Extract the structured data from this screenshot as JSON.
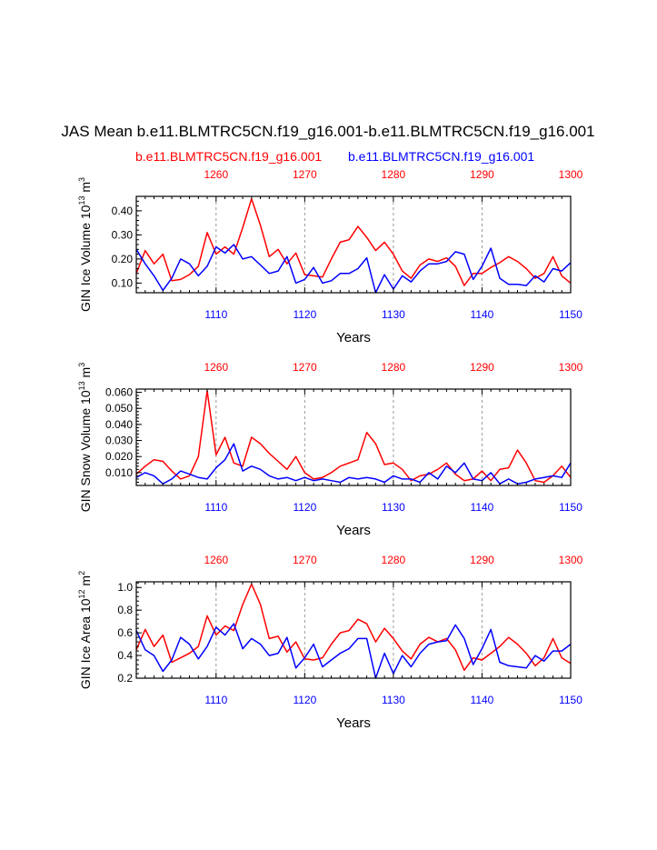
{
  "title": "JAS Mean b.e11.BLMTRC5CN.f19_g16.001-b.e11.BLMTRC5CN.f19_g16.001",
  "legend": {
    "red_label": "b.e11.BLMTRC5CN.f19_g16.001",
    "blue_label": "b.e11.BLMTRC5CN.f19_g16.001"
  },
  "colors": {
    "red": "#ff0000",
    "blue": "#0000ff",
    "axis": "#000000",
    "grid": "#999999"
  },
  "chart_data": [
    {
      "type": "line",
      "ylabel": "GIN Ice Volume 10",
      "ylabel_exp": "13",
      "ylabel_unit": "m",
      "ylabel_unit_exp": "3",
      "xlabel": "Years",
      "ylim": [
        0.06,
        0.46
      ],
      "yticks": [
        0.1,
        0.2,
        0.3,
        0.4
      ],
      "ytick_labels": [
        "0.10",
        "0.20",
        "0.30",
        "0.40"
      ],
      "bottom_axis": {
        "range": [
          1101,
          1150
        ],
        "ticks": [
          1110,
          1120,
          1130,
          1140,
          1150
        ]
      },
      "top_axis": {
        "range": [
          1251,
          1300
        ],
        "ticks": [
          1260,
          1270,
          1280,
          1290,
          1300
        ]
      },
      "series": [
        {
          "name": "b.e11.BLMTRC5CN.f19_g16.001",
          "color": "red",
          "values": [
            0.14,
            0.235,
            0.18,
            0.22,
            0.11,
            0.115,
            0.135,
            0.17,
            0.31,
            0.22,
            0.25,
            0.22,
            0.33,
            0.45,
            0.34,
            0.21,
            0.24,
            0.18,
            0.225,
            0.135,
            0.13,
            0.125,
            0.2,
            0.27,
            0.28,
            0.335,
            0.29,
            0.235,
            0.27,
            0.22,
            0.15,
            0.12,
            0.175,
            0.2,
            0.19,
            0.205,
            0.17,
            0.09,
            0.14,
            0.14,
            0.165,
            0.185,
            0.21,
            0.19,
            0.16,
            0.12,
            0.14,
            0.21,
            0.13,
            0.1
          ]
        },
        {
          "name": "b.e11.BLMTRC5CN.f19_g16.001",
          "color": "blue",
          "values": [
            0.24,
            0.18,
            0.13,
            0.07,
            0.12,
            0.2,
            0.18,
            0.13,
            0.17,
            0.25,
            0.225,
            0.26,
            0.2,
            0.21,
            0.175,
            0.14,
            0.15,
            0.21,
            0.1,
            0.115,
            0.165,
            0.1,
            0.11,
            0.14,
            0.14,
            0.16,
            0.205,
            0.06,
            0.135,
            0.075,
            0.13,
            0.105,
            0.15,
            0.18,
            0.18,
            0.19,
            0.23,
            0.22,
            0.115,
            0.17,
            0.245,
            0.12,
            0.095,
            0.095,
            0.09,
            0.13,
            0.105,
            0.16,
            0.15,
            0.185
          ]
        }
      ]
    },
    {
      "type": "line",
      "ylabel": "GIN Snow Volume 10",
      "ylabel_exp": "13",
      "ylabel_unit": "m",
      "ylabel_unit_exp": "3",
      "xlabel": "Years",
      "ylim": [
        0.002,
        0.062
      ],
      "yticks": [
        0.01,
        0.02,
        0.03,
        0.04,
        0.05,
        0.06
      ],
      "ytick_labels": [
        "0.010",
        "0.020",
        "0.030",
        "0.040",
        "0.050",
        "0.060"
      ],
      "bottom_axis": {
        "range": [
          1101,
          1150
        ],
        "ticks": [
          1110,
          1120,
          1130,
          1140,
          1150
        ]
      },
      "top_axis": {
        "range": [
          1251,
          1300
        ],
        "ticks": [
          1260,
          1270,
          1280,
          1290,
          1300
        ]
      },
      "series": [
        {
          "name": "b.e11.BLMTRC5CN.f19_g16.001",
          "color": "red",
          "values": [
            0.009,
            0.014,
            0.018,
            0.017,
            0.011,
            0.006,
            0.008,
            0.02,
            0.061,
            0.021,
            0.032,
            0.016,
            0.014,
            0.032,
            0.028,
            0.022,
            0.017,
            0.012,
            0.02,
            0.01,
            0.006,
            0.007,
            0.01,
            0.014,
            0.016,
            0.018,
            0.035,
            0.028,
            0.015,
            0.016,
            0.012,
            0.005,
            0.008,
            0.009,
            0.012,
            0.016,
            0.009,
            0.005,
            0.006,
            0.011,
            0.005,
            0.012,
            0.013,
            0.024,
            0.016,
            0.005,
            0.004,
            0.008,
            0.014,
            0.007
          ]
        },
        {
          "name": "b.e11.BLMTRC5CN.f19_g16.001",
          "color": "blue",
          "values": [
            0.007,
            0.01,
            0.008,
            0.003,
            0.006,
            0.011,
            0.009,
            0.007,
            0.006,
            0.013,
            0.018,
            0.028,
            0.011,
            0.014,
            0.012,
            0.008,
            0.006,
            0.007,
            0.005,
            0.007,
            0.005,
            0.006,
            0.005,
            0.004,
            0.007,
            0.006,
            0.007,
            0.006,
            0.004,
            0.008,
            0.006,
            0.006,
            0.004,
            0.01,
            0.006,
            0.014,
            0.01,
            0.016,
            0.006,
            0.005,
            0.01,
            0.003,
            0.006,
            0.003,
            0.004,
            0.006,
            0.007,
            0.008,
            0.007,
            0.016
          ]
        }
      ]
    },
    {
      "type": "line",
      "ylabel": "GIN Ice Area 10",
      "ylabel_exp": "12",
      "ylabel_unit": "m",
      "ylabel_unit_exp": "2",
      "xlabel": "Years",
      "ylim": [
        0.2,
        1.05
      ],
      "yticks": [
        0.2,
        0.4,
        0.6,
        0.8,
        1.0
      ],
      "ytick_labels": [
        "0.2",
        "0.4",
        "0.6",
        "0.8",
        "1.0"
      ],
      "bottom_axis": {
        "range": [
          1101,
          1150
        ],
        "ticks": [
          1110,
          1120,
          1130,
          1140,
          1150
        ]
      },
      "top_axis": {
        "range": [
          1251,
          1300
        ],
        "ticks": [
          1260,
          1270,
          1280,
          1290,
          1300
        ]
      },
      "series": [
        {
          "name": "b.e11.BLMTRC5CN.f19_g16.001",
          "color": "red",
          "values": [
            0.45,
            0.63,
            0.48,
            0.58,
            0.34,
            0.38,
            0.42,
            0.48,
            0.75,
            0.58,
            0.66,
            0.62,
            0.85,
            1.03,
            0.85,
            0.55,
            0.57,
            0.43,
            0.52,
            0.37,
            0.36,
            0.38,
            0.5,
            0.6,
            0.62,
            0.72,
            0.68,
            0.52,
            0.64,
            0.55,
            0.44,
            0.37,
            0.5,
            0.56,
            0.52,
            0.55,
            0.45,
            0.27,
            0.38,
            0.36,
            0.42,
            0.48,
            0.56,
            0.5,
            0.42,
            0.31,
            0.38,
            0.55,
            0.38,
            0.33
          ]
        },
        {
          "name": "b.e11.BLMTRC5CN.f19_g16.001",
          "color": "blue",
          "values": [
            0.62,
            0.45,
            0.4,
            0.26,
            0.36,
            0.56,
            0.5,
            0.37,
            0.48,
            0.65,
            0.58,
            0.68,
            0.46,
            0.55,
            0.5,
            0.4,
            0.42,
            0.56,
            0.29,
            0.38,
            0.5,
            0.3,
            0.36,
            0.42,
            0.46,
            0.55,
            0.55,
            0.2,
            0.42,
            0.24,
            0.4,
            0.3,
            0.42,
            0.5,
            0.52,
            0.53,
            0.67,
            0.55,
            0.32,
            0.46,
            0.63,
            0.34,
            0.31,
            0.3,
            0.29,
            0.4,
            0.35,
            0.44,
            0.44,
            0.5
          ]
        }
      ]
    }
  ]
}
